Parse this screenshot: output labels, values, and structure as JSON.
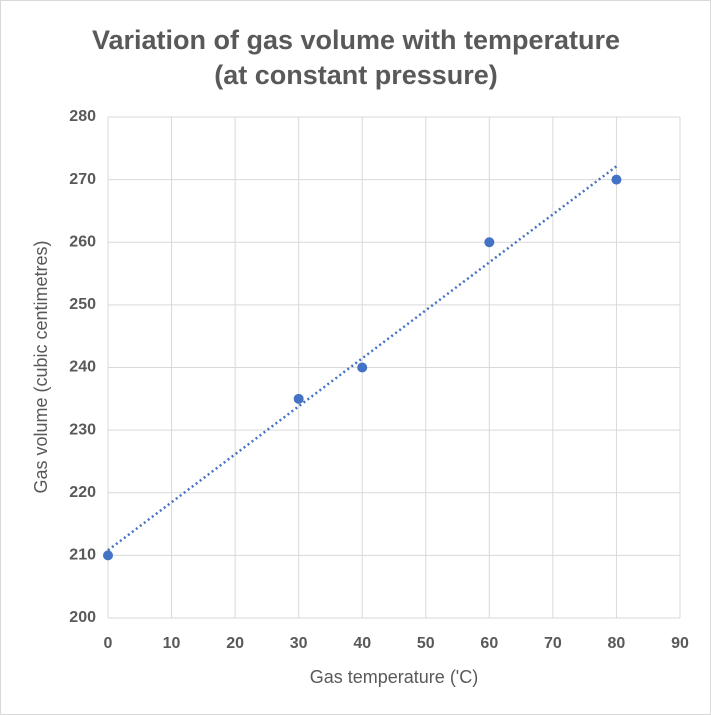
{
  "chart_data": {
    "type": "scatter",
    "title": [
      "Variation of gas volume with temperature",
      "(at constant pressure)"
    ],
    "x_label": "Gas temperature ('C)",
    "y_label": "Gas volume (cubic centimetres)",
    "series": [
      {
        "name": "Gas volume",
        "color": "#4472c4",
        "x": [
          0,
          30,
          40,
          60,
          80
        ],
        "values": [
          210,
          235,
          240,
          260,
          270
        ]
      }
    ],
    "trendline": "linear",
    "xlim": [
      0,
      90
    ],
    "xticks": [
      0,
      10,
      20,
      30,
      40,
      50,
      60,
      70,
      80,
      90
    ],
    "ylim": [
      200,
      280
    ],
    "yticks": [
      200,
      210,
      220,
      230,
      240,
      250,
      260,
      270,
      280
    ],
    "grid": true
  }
}
